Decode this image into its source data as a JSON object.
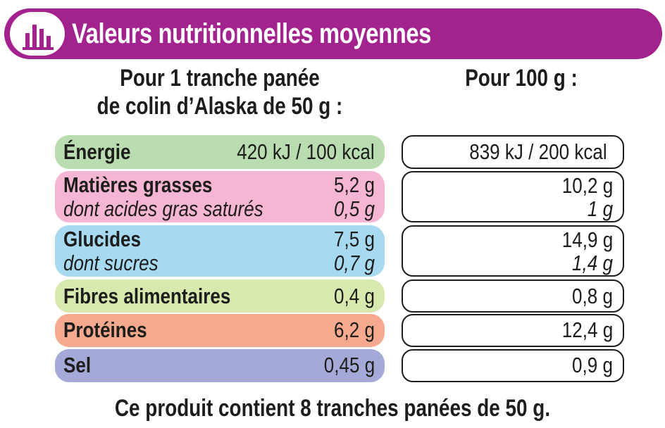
{
  "header": {
    "title": "Valeurs nutritionnelles moyennes",
    "icon": "bar-chart-icon",
    "banner_color": "#a3238e"
  },
  "columns": {
    "per_portion_line1": "Pour 1 tranche panée",
    "per_portion_line2": "de colin d’Alaska de 50 g :",
    "per_100g": "Pour 100 g :"
  },
  "rows": [
    {
      "label": "Énergie",
      "portion": "420 kJ / 100 kcal",
      "per100": "839 kJ / 200 kcal",
      "color": "#b9dcb0"
    },
    {
      "label": "Matières grasses",
      "portion": "5,2 g",
      "per100": "10,2 g",
      "sub_label": "dont acides gras saturés",
      "sub_portion": "0,5 g",
      "sub_per100": "1 g",
      "color": "#f4b6d2"
    },
    {
      "label": "Glucides",
      "portion": "7,5 g",
      "per100": "14,9 g",
      "sub_label": "dont sucres",
      "sub_portion": "0,7 g",
      "sub_per100": "1,4 g",
      "color": "#a7d9f1"
    },
    {
      "label": "Fibres alimentaires",
      "portion": "0,4 g",
      "per100": "0,8 g",
      "color": "#d8e9af"
    },
    {
      "label": "Protéines",
      "portion": "6,2 g",
      "per100": "12,4 g",
      "color": "#f5a98e"
    },
    {
      "label": "Sel",
      "portion": "0,45 g",
      "per100": "0,9 g",
      "color": "#a4a9d7"
    }
  ],
  "footer": "Ce produit contient 8 tranches panées de 50 g."
}
